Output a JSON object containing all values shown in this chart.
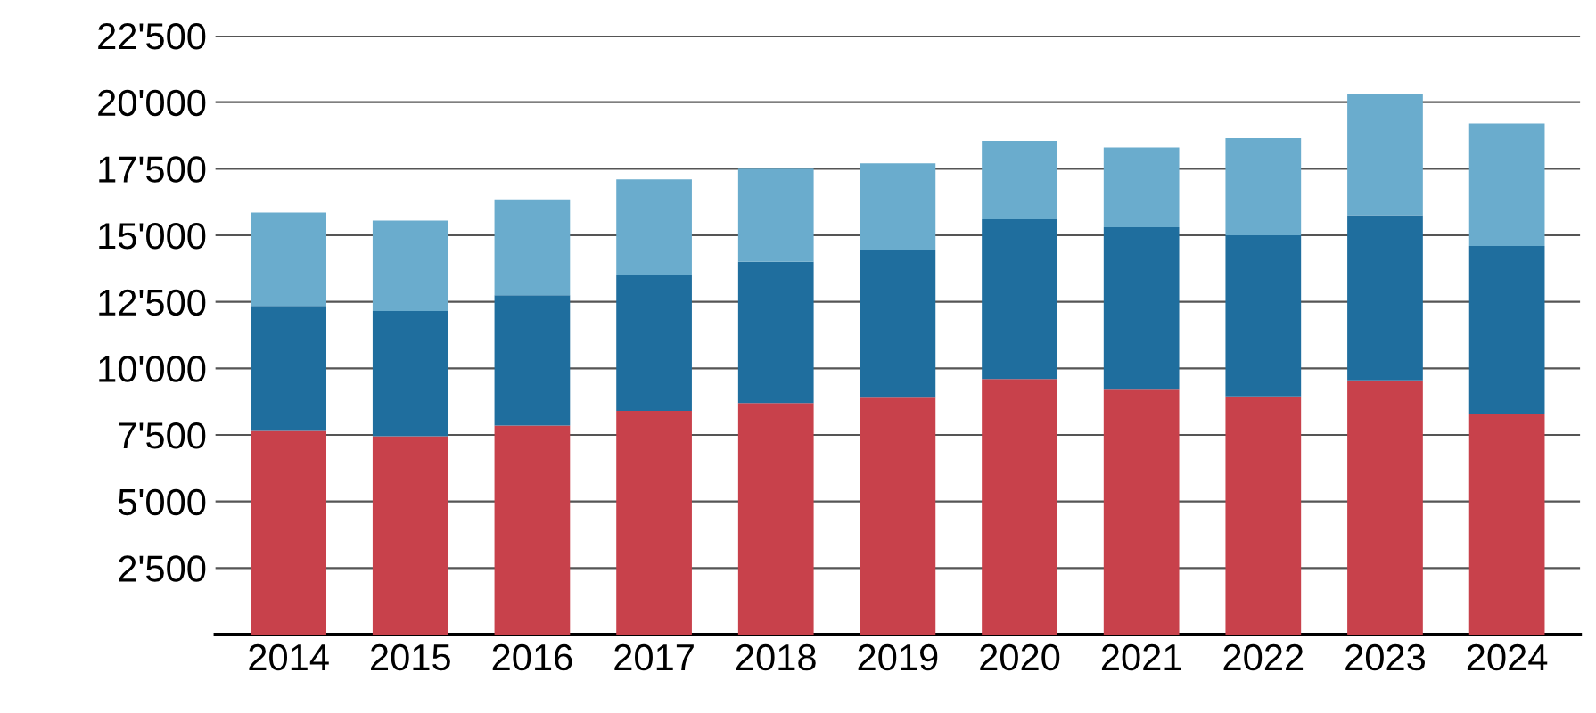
{
  "chart_data": {
    "type": "bar",
    "stacked": true,
    "categories": [
      "2014",
      "2015",
      "2016",
      "2017",
      "2018",
      "2019",
      "2020",
      "2021",
      "2022",
      "2023",
      "2024"
    ],
    "series": [
      {
        "color": "#c8414b",
        "values": [
          7650,
          7450,
          7850,
          8400,
          8700,
          8900,
          9600,
          9200,
          8950,
          9550,
          8300
        ]
      },
      {
        "color": "#1f6e9e",
        "values": [
          4700,
          4700,
          4900,
          5100,
          5300,
          5550,
          6000,
          6100,
          6050,
          6200,
          6300
        ]
      },
      {
        "color": "#6aaccd",
        "values": [
          3500,
          3400,
          3600,
          3600,
          3500,
          3250,
          2950,
          3000,
          3650,
          4550,
          4600
        ]
      }
    ],
    "ylim": [
      0,
      22500
    ],
    "yticks": [
      {
        "value": 2500,
        "label": "2'500"
      },
      {
        "value": 5000,
        "label": "5'000"
      },
      {
        "value": 7500,
        "label": "7'500"
      },
      {
        "value": 10000,
        "label": "10'000"
      },
      {
        "value": 12500,
        "label": "12'500"
      },
      {
        "value": 15000,
        "label": "15'000"
      },
      {
        "value": 17500,
        "label": "17'500"
      },
      {
        "value": 20000,
        "label": "20'000"
      },
      {
        "value": 22500,
        "label": "22'500"
      }
    ],
    "grid": "y"
  }
}
